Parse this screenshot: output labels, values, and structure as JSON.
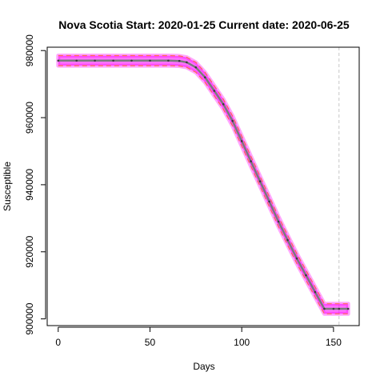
{
  "chart_data": {
    "type": "line",
    "title": "Nova Scotia Start:  2020-01-25   Current date:  2020-06-25",
    "xlabel": "Days",
    "ylabel": "Susceptible",
    "xlim": [
      -6,
      164
    ],
    "ylim": [
      898000,
      981000
    ],
    "x_ticks": [
      0,
      50,
      100,
      150
    ],
    "x_tick_labels": [
      "0",
      "50",
      "100",
      "150"
    ],
    "y_ticks": [
      900000,
      920000,
      940000,
      960000,
      980000
    ],
    "y_tick_labels": [
      "900000",
      "920000",
      "940000",
      "960000",
      "980000"
    ],
    "current_day_marker": 153,
    "band_halfwidth": 1500,
    "series": [
      {
        "name": "Susceptible",
        "points": [
          [
            0,
            977000
          ],
          [
            10,
            977000
          ],
          [
            20,
            977000
          ],
          [
            30,
            977000
          ],
          [
            40,
            977000
          ],
          [
            50,
            977000
          ],
          [
            60,
            977000
          ],
          [
            66,
            976900
          ],
          [
            70,
            976500
          ],
          [
            75,
            975000
          ],
          [
            80,
            972000
          ],
          [
            85,
            968000
          ],
          [
            90,
            964000
          ],
          [
            95,
            959000
          ],
          [
            100,
            953000
          ],
          [
            105,
            947000
          ],
          [
            110,
            941000
          ],
          [
            115,
            935000
          ],
          [
            120,
            929000
          ],
          [
            125,
            923500
          ],
          [
            130,
            918000
          ],
          [
            135,
            913000
          ],
          [
            140,
            908000
          ],
          [
            145,
            903000
          ],
          [
            150,
            903000
          ],
          [
            153,
            903000
          ],
          [
            158,
            903000
          ]
        ]
      }
    ],
    "colors": {
      "band": "#ff00ff",
      "band_edge": "#ff6a50",
      "line": "#7a7a7a",
      "marker_line": "#c8c8c8"
    }
  }
}
